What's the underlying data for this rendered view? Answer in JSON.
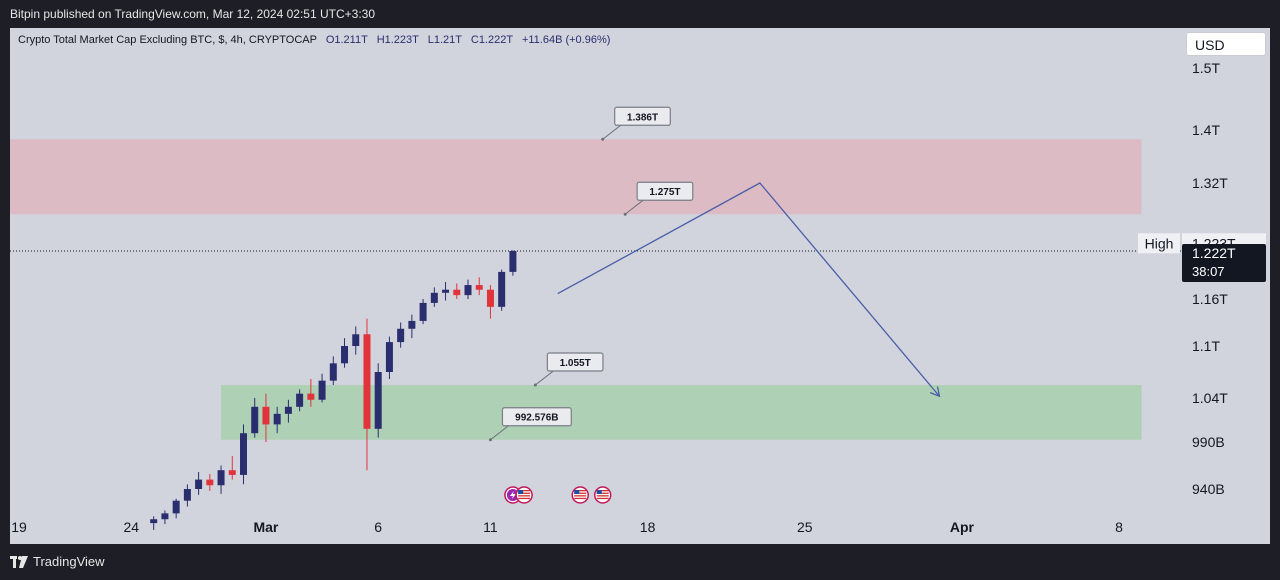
{
  "header": {
    "published": "Bitpin published on TradingView.com, Mar 12, 2024 02:51 UTC+3:30"
  },
  "legend": {
    "symbol": "Crypto Total Market Cap Excluding BTC, $, 4h, CRYPTOCAP",
    "open": "O1.211T",
    "high": "H1.223T",
    "low": "L1.21T",
    "close": "C1.222T",
    "change": "+11.64B (+0.96%)"
  },
  "price_axis": {
    "currency": "USD",
    "high_label": "High",
    "high_value": "1.223T",
    "last_value": "1.222T",
    "countdown": "38:07"
  },
  "footer": {
    "brand": "TradingView"
  },
  "colors": {
    "up": "#2a2e6e",
    "down": "#e0333c",
    "supply_zone": "#e8a6b2",
    "demand_zone": "#9fd0a4",
    "projection": "#4a5ea8",
    "background": "#d1d4dc"
  },
  "chart_data": {
    "type": "candlestick",
    "ylim": [
      900,
      1540
    ],
    "y_unit": "B",
    "y_ticks": [
      {
        "value": 1500,
        "label": "1.5T"
      },
      {
        "value": 1400,
        "label": "1.4T"
      },
      {
        "value": 1320,
        "label": "1.32T"
      },
      {
        "value": 1160,
        "label": "1.16T"
      },
      {
        "value": 1100,
        "label": "1.1T"
      },
      {
        "value": 1040,
        "label": "1.04T"
      },
      {
        "value": 990,
        "label": "990B"
      },
      {
        "value": 940,
        "label": "940B"
      }
    ],
    "x_ticks": [
      {
        "date": "2024-02-19",
        "label": "19"
      },
      {
        "date": "2024-02-24",
        "label": "24"
      },
      {
        "date": "2024-03-01",
        "label": "Mar"
      },
      {
        "date": "2024-03-06",
        "label": "6"
      },
      {
        "date": "2024-03-11",
        "label": "11"
      },
      {
        "date": "2024-03-18",
        "label": "18"
      },
      {
        "date": "2024-03-25",
        "label": "25"
      },
      {
        "date": "2024-04-01",
        "label": "Apr"
      },
      {
        "date": "2024-04-08",
        "label": "8"
      }
    ],
    "zones": [
      {
        "name": "supply",
        "from": 1275,
        "to": 1386,
        "start": "2024-02-16",
        "end": "2024-04-09"
      },
      {
        "name": "demand",
        "from": 992.576,
        "to": 1055,
        "start": "2024-02-28",
        "end": "2024-04-09"
      }
    ],
    "annotations": [
      {
        "text": "1.386T",
        "value": 1386,
        "date": "2024-03-16"
      },
      {
        "text": "1.275T",
        "value": 1275,
        "date": "2024-03-17"
      },
      {
        "text": "1.055T",
        "value": 1055,
        "date": "2024-03-13"
      },
      {
        "text": "992.576B",
        "value": 992.576,
        "date": "2024-03-11"
      }
    ],
    "projection_path": [
      {
        "date": "2024-03-14",
        "value": 1167
      },
      {
        "date": "2024-03-23",
        "value": 1320
      },
      {
        "date": "2024-03-31",
        "value": 1042
      }
    ],
    "last_price": 1222,
    "candles": [
      {
        "date": "2024-02-25T00:00",
        "o": 905,
        "h": 912,
        "l": 898,
        "c": 909
      },
      {
        "date": "2024-02-25T12:00",
        "o": 909,
        "h": 918,
        "l": 904,
        "c": 915
      },
      {
        "date": "2024-02-26T00:00",
        "o": 915,
        "h": 930,
        "l": 910,
        "c": 928
      },
      {
        "date": "2024-02-26T12:00",
        "o": 928,
        "h": 945,
        "l": 922,
        "c": 940
      },
      {
        "date": "2024-02-27T00:00",
        "o": 940,
        "h": 958,
        "l": 934,
        "c": 950
      },
      {
        "date": "2024-02-27T12:00",
        "o": 950,
        "h": 956,
        "l": 938,
        "c": 944
      },
      {
        "date": "2024-02-28T00:00",
        "o": 944,
        "h": 965,
        "l": 935,
        "c": 960
      },
      {
        "date": "2024-02-28T12:00",
        "o": 960,
        "h": 975,
        "l": 950,
        "c": 955
      },
      {
        "date": "2024-02-29T00:00",
        "o": 955,
        "h": 1010,
        "l": 945,
        "c": 1000
      },
      {
        "date": "2024-02-29T12:00",
        "o": 1000,
        "h": 1040,
        "l": 995,
        "c": 1030
      },
      {
        "date": "2024-03-01T00:00",
        "o": 1030,
        "h": 1045,
        "l": 990,
        "c": 1010
      },
      {
        "date": "2024-03-01T12:00",
        "o": 1010,
        "h": 1030,
        "l": 1000,
        "c": 1022
      },
      {
        "date": "2024-03-02T00:00",
        "o": 1022,
        "h": 1038,
        "l": 1012,
        "c": 1030
      },
      {
        "date": "2024-03-02T12:00",
        "o": 1030,
        "h": 1050,
        "l": 1025,
        "c": 1045
      },
      {
        "date": "2024-03-03T00:00",
        "o": 1045,
        "h": 1062,
        "l": 1030,
        "c": 1038
      },
      {
        "date": "2024-03-03T12:00",
        "o": 1038,
        "h": 1068,
        "l": 1035,
        "c": 1060
      },
      {
        "date": "2024-03-04T00:00",
        "o": 1060,
        "h": 1088,
        "l": 1055,
        "c": 1080
      },
      {
        "date": "2024-03-04T12:00",
        "o": 1080,
        "h": 1110,
        "l": 1075,
        "c": 1100
      },
      {
        "date": "2024-03-05T00:00",
        "o": 1100,
        "h": 1125,
        "l": 1090,
        "c": 1115
      },
      {
        "date": "2024-03-05T12:00",
        "o": 1115,
        "h": 1135,
        "l": 960,
        "c": 1005
      },
      {
        "date": "2024-03-06T00:00",
        "o": 1005,
        "h": 1080,
        "l": 995,
        "c": 1070
      },
      {
        "date": "2024-03-06T12:00",
        "o": 1070,
        "h": 1112,
        "l": 1062,
        "c": 1105
      },
      {
        "date": "2024-03-07T00:00",
        "o": 1105,
        "h": 1130,
        "l": 1098,
        "c": 1122
      },
      {
        "date": "2024-03-07T12:00",
        "o": 1122,
        "h": 1140,
        "l": 1110,
        "c": 1132
      },
      {
        "date": "2024-03-08T00:00",
        "o": 1132,
        "h": 1160,
        "l": 1128,
        "c": 1155
      },
      {
        "date": "2024-03-08T12:00",
        "o": 1155,
        "h": 1175,
        "l": 1150,
        "c": 1168
      },
      {
        "date": "2024-03-09T00:00",
        "o": 1168,
        "h": 1182,
        "l": 1158,
        "c": 1172
      },
      {
        "date": "2024-03-09T12:00",
        "o": 1172,
        "h": 1180,
        "l": 1160,
        "c": 1165
      },
      {
        "date": "2024-03-10T00:00",
        "o": 1165,
        "h": 1185,
        "l": 1160,
        "c": 1178
      },
      {
        "date": "2024-03-10T12:00",
        "o": 1178,
        "h": 1188,
        "l": 1165,
        "c": 1172
      },
      {
        "date": "2024-03-11T00:00",
        "o": 1172,
        "h": 1178,
        "l": 1135,
        "c": 1150
      },
      {
        "date": "2024-03-11T12:00",
        "o": 1150,
        "h": 1198,
        "l": 1145,
        "c": 1195
      },
      {
        "date": "2024-03-12T00:00",
        "o": 1195,
        "h": 1223,
        "l": 1190,
        "c": 1222
      }
    ]
  }
}
